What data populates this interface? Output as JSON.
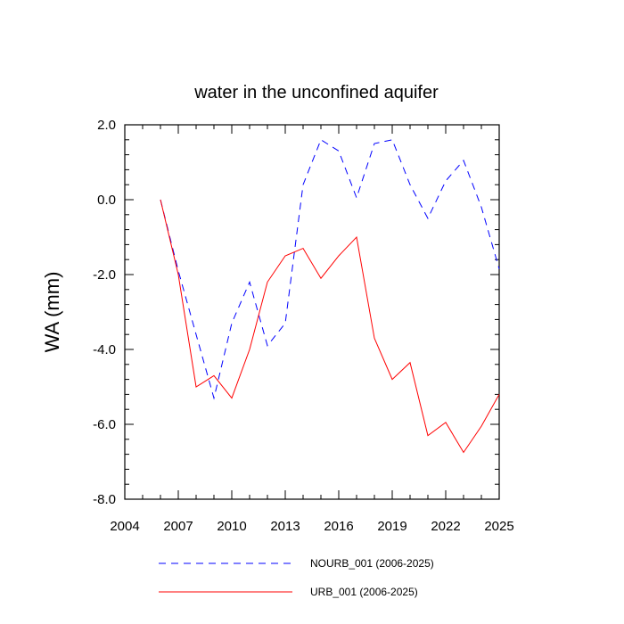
{
  "chart_data": {
    "type": "line",
    "title": "water in the unconfined aquifer",
    "xlabel": "",
    "ylabel": "WA  (mm)",
    "xlim": [
      2004,
      2025
    ],
    "ylim": [
      -8.0,
      2.0
    ],
    "x_ticks": [
      2004,
      2007,
      2010,
      2013,
      2016,
      2019,
      2022,
      2025
    ],
    "x_tick_labels": [
      "2004",
      "2007",
      "2010",
      "2013",
      "2016",
      "2019",
      "2022",
      "2025"
    ],
    "y_ticks": [
      -8.0,
      -6.0,
      -4.0,
      -2.0,
      0.0,
      2.0
    ],
    "y_tick_labels": [
      "-8.0",
      "-6.0",
      "-4.0",
      "-2.0",
      "0.0",
      "2.0"
    ],
    "grid": false,
    "legend_position": "bottom",
    "x": [
      2006,
      2007,
      2008,
      2009,
      2010,
      2011,
      2012,
      2013,
      2014,
      2015,
      2016,
      2017,
      2018,
      2019,
      2020,
      2021,
      2022,
      2023,
      2024,
      2025
    ],
    "series": [
      {
        "name": "NOURB_001 (2006-2025)",
        "color": "#0000ff",
        "dash": "dashed",
        "values": [
          0.0,
          -1.9,
          -3.6,
          -5.3,
          -3.3,
          -2.2,
          -3.9,
          -3.3,
          0.4,
          1.6,
          1.3,
          0.05,
          1.5,
          1.6,
          0.4,
          -0.5,
          0.5,
          1.05,
          -0.2,
          -1.85
        ]
      },
      {
        "name": "URB_001 (2006-2025)",
        "color": "#ff0000",
        "dash": "solid",
        "values": [
          0.0,
          -2.0,
          -5.0,
          -4.7,
          -5.3,
          -4.0,
          -2.2,
          -1.5,
          -1.3,
          -2.1,
          -1.5,
          -1.0,
          -3.7,
          -4.8,
          -4.35,
          -6.3,
          -5.95,
          -6.75,
          -6.05,
          -5.2
        ]
      }
    ]
  }
}
